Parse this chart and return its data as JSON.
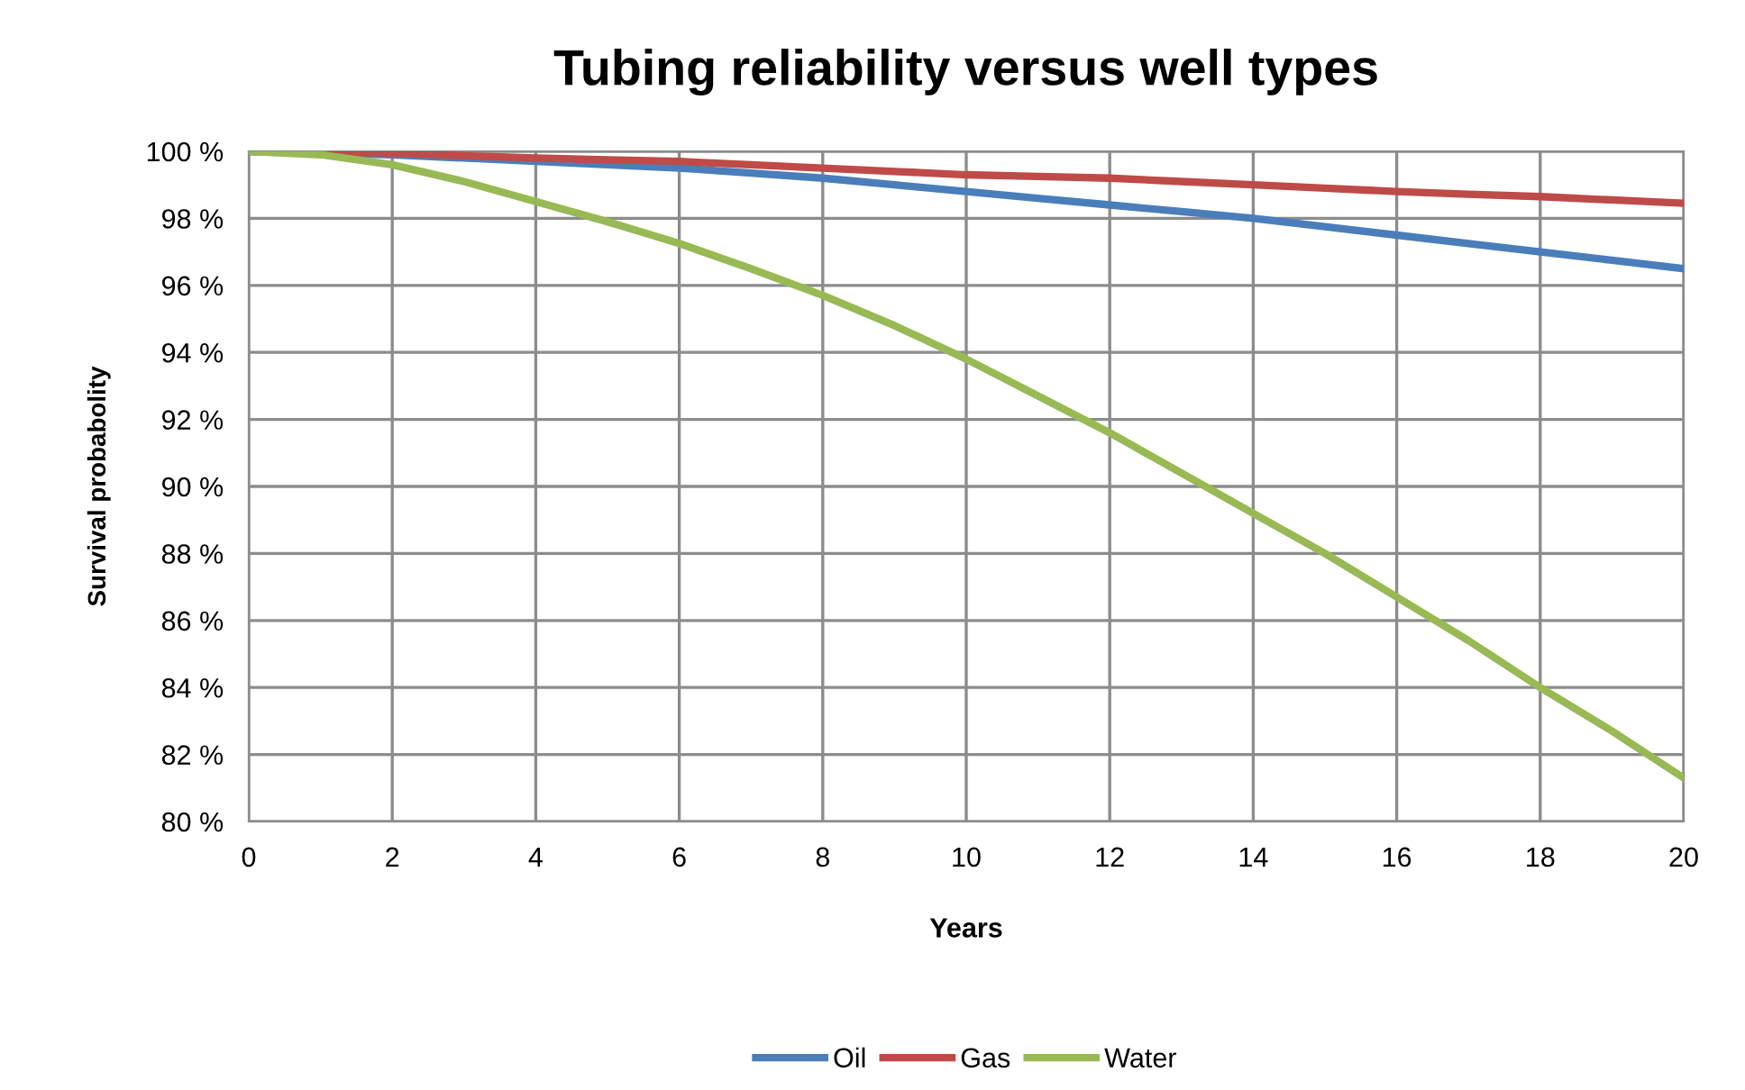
{
  "chart_data": {
    "type": "line",
    "title": "Tubing reliability versus well types",
    "xlabel": "Years",
    "ylabel": "Survival probabolity",
    "x": [
      0,
      1,
      2,
      3,
      4,
      5,
      6,
      7,
      8,
      9,
      10,
      11,
      12,
      13,
      14,
      15,
      16,
      17,
      18,
      19,
      20
    ],
    "series": [
      {
        "name": "Oil",
        "color": "#4a7ebb",
        "values": [
          100,
          99.95,
          99.9,
          99.8,
          99.7,
          99.6,
          99.5,
          99.35,
          99.2,
          99.0,
          98.8,
          98.6,
          98.4,
          98.2,
          98.0,
          97.75,
          97.5,
          97.25,
          97.0,
          96.75,
          96.5
        ]
      },
      {
        "name": "Gas",
        "color": "#be4b48",
        "values": [
          100,
          99.97,
          99.95,
          99.87,
          99.8,
          99.75,
          99.7,
          99.6,
          99.5,
          99.4,
          99.3,
          99.25,
          99.2,
          99.1,
          99.0,
          98.9,
          98.8,
          98.72,
          98.65,
          98.55,
          98.45
        ]
      },
      {
        "name": "Water",
        "color": "#98b954",
        "values": [
          100,
          99.9,
          99.6,
          99.1,
          98.5,
          97.9,
          97.25,
          96.5,
          95.7,
          94.8,
          93.8,
          92.7,
          91.6,
          90.4,
          89.2,
          88.0,
          86.7,
          85.4,
          84.0,
          82.7,
          81.3
        ]
      }
    ],
    "xlim": [
      0,
      20
    ],
    "xticks": [
      0,
      2,
      4,
      6,
      8,
      10,
      12,
      14,
      16,
      18,
      20
    ],
    "ylim": [
      80,
      100
    ],
    "yticks": [
      {
        "value": 80,
        "label": "80 %"
      },
      {
        "value": 82,
        "label": "82 %"
      },
      {
        "value": 84,
        "label": "84 %"
      },
      {
        "value": 86,
        "label": "86 %"
      },
      {
        "value": 88,
        "label": "88 %"
      },
      {
        "value": 90,
        "label": "90 %"
      },
      {
        "value": 92,
        "label": "92 %"
      },
      {
        "value": 94,
        "label": "94 %"
      },
      {
        "value": 96,
        "label": "96 %"
      },
      {
        "value": 98,
        "label": "98 %"
      },
      {
        "value": 100,
        "label": "100 %"
      }
    ],
    "grid": true,
    "legend": "bottom",
    "marker": "none",
    "line_style": "solid"
  }
}
